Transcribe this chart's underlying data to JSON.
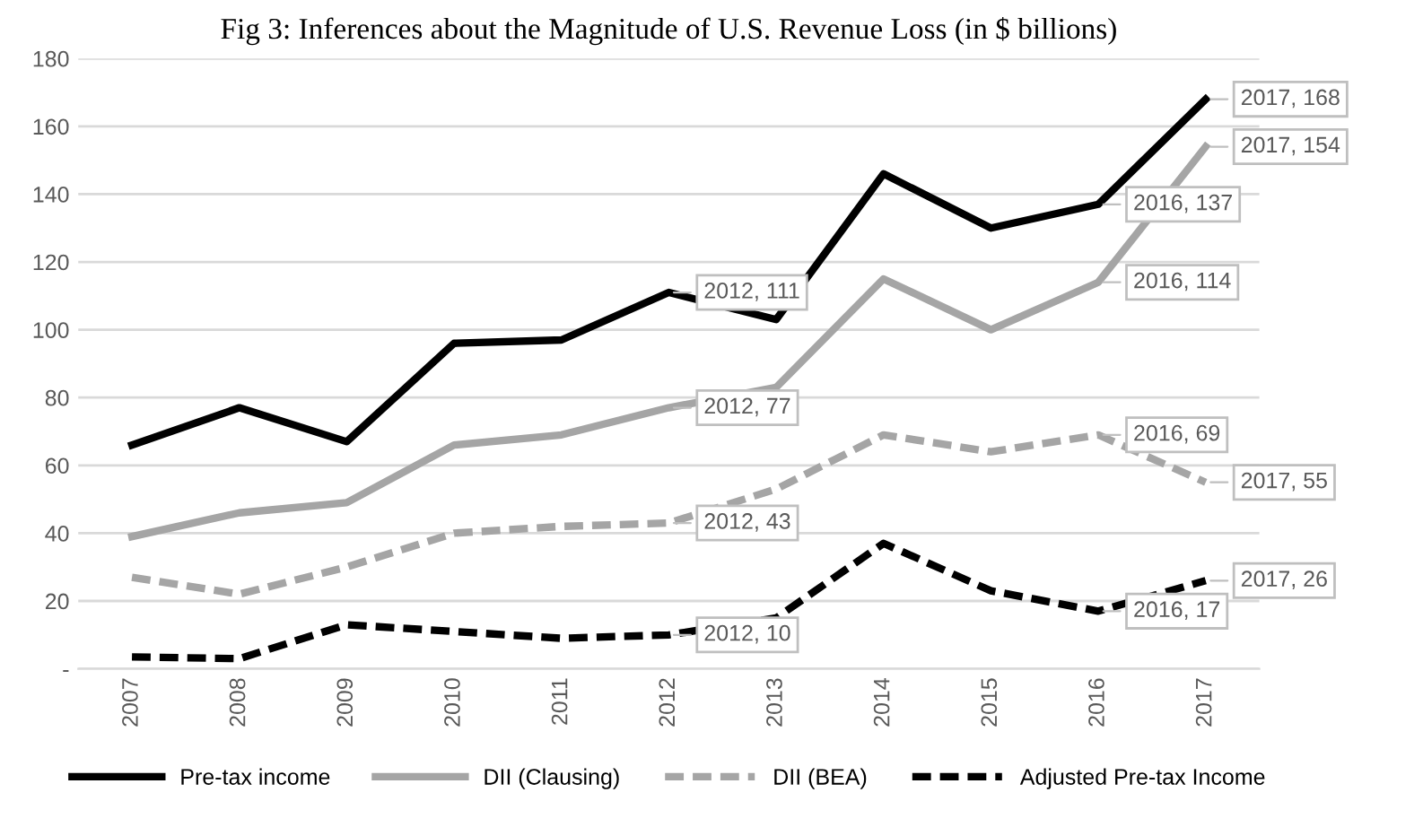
{
  "chart_data": {
    "type": "line",
    "title": "Fig 3: Inferences about the Magnitude of U.S. Revenue Loss (in $ billions)",
    "categories": [
      "2007",
      "2008",
      "2009",
      "2010",
      "2011",
      "2012",
      "2013",
      "2014",
      "2015",
      "2016",
      "2017"
    ],
    "series": [
      {
        "name": "Pre-tax income",
        "color": "#000000",
        "line_style": "solid",
        "values": [
          66,
          77,
          67,
          96,
          97,
          111,
          103,
          146,
          130,
          137,
          168
        ]
      },
      {
        "name": "DII (Clausing)",
        "color": "#a5a5a5",
        "line_style": "solid",
        "values": [
          39,
          46,
          49,
          66,
          69,
          77,
          83,
          115,
          100,
          114,
          154
        ]
      },
      {
        "name": "DII (BEA)",
        "color": "#a5a5a5",
        "line_style": "dashed",
        "values": [
          27,
          22,
          30,
          40,
          42,
          43,
          53,
          69,
          64,
          69,
          55
        ]
      },
      {
        "name": "Adjusted Pre-tax Income",
        "color": "#000000",
        "line_style": "dashed",
        "values": [
          3.5,
          3,
          13,
          11,
          9,
          10,
          15,
          37,
          23,
          17,
          26
        ]
      }
    ],
    "ylim": [
      0,
      180
    ],
    "yticks": [
      {
        "value": 0,
        "label": "-"
      },
      20,
      40,
      60,
      80,
      100,
      120,
      140,
      160,
      180
    ],
    "grid": "y",
    "legend": "bottom",
    "marker": "none",
    "annotations": [
      {
        "text": "2012, 111",
        "x": "2012",
        "y": 111
      },
      {
        "text": "2016, 137",
        "x": "2016",
        "y": 137
      },
      {
        "text": "2017, 168",
        "x": "2017",
        "y": 168
      },
      {
        "text": "2012, 77",
        "x": "2012",
        "y": 77
      },
      {
        "text": "2016, 114",
        "x": "2016",
        "y": 114
      },
      {
        "text": "2017, 154",
        "x": "2017",
        "y": 154
      },
      {
        "text": "2012, 43",
        "x": "2012",
        "y": 43
      },
      {
        "text": "2016, 69",
        "x": "2016",
        "y": 69
      },
      {
        "text": "2017, 55",
        "x": "2017",
        "y": 55
      },
      {
        "text": "2012, 10",
        "x": "2012",
        "y": 10
      },
      {
        "text": "2016, 17",
        "x": "2016",
        "y": 17
      },
      {
        "text": "2017, 26",
        "x": "2017",
        "y": 26
      }
    ]
  }
}
